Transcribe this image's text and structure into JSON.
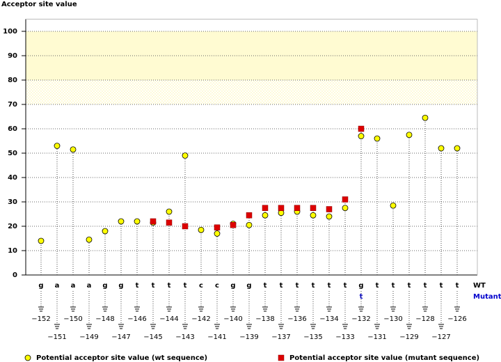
{
  "chart_data": {
    "type": "lollipop",
    "y_axis_label": "Acceptor site value",
    "categories": [
      "−152",
      "−151",
      "−150",
      "−149",
      "−148",
      "−147",
      "−146",
      "−145",
      "−144",
      "−143",
      "−142",
      "−141",
      "−140",
      "−139",
      "−138",
      "−137",
      "−136",
      "−135",
      "−134",
      "−133",
      "−132",
      "−131",
      "−130",
      "−129",
      "−128",
      "−127",
      "−126"
    ],
    "wt_label": "WT",
    "mutant_label": "Mutant",
    "wt_sequence": [
      "g",
      "a",
      "a",
      "a",
      "g",
      "g",
      "t",
      "t",
      "t",
      "t",
      "c",
      "c",
      "g",
      "g",
      "t",
      "t",
      "t",
      "t",
      "t",
      "t",
      "g",
      "t",
      "t",
      "t",
      "t",
      "t",
      "t"
    ],
    "mutant_sequence": [
      null,
      null,
      null,
      null,
      null,
      null,
      null,
      null,
      null,
      null,
      null,
      null,
      null,
      null,
      null,
      null,
      null,
      null,
      null,
      null,
      "t",
      null,
      null,
      null,
      null,
      null,
      null
    ],
    "series": [
      {
        "name": "Potential acceptor site value (wt sequence)",
        "color": "#ffff00",
        "marker": "circle",
        "values": [
          14,
          53,
          51.5,
          14.5,
          18,
          22,
          22,
          21.5,
          26,
          49,
          18.5,
          17,
          21,
          20.5,
          24.5,
          25.5,
          26,
          24.5,
          24,
          27.5,
          57,
          56,
          28.5,
          57.5,
          64.5,
          52,
          52
        ]
      },
      {
        "name": "Potential acceptor site value (mutant sequence)",
        "color": "#dd0000",
        "marker": "square",
        "values": [
          null,
          null,
          null,
          null,
          null,
          null,
          null,
          22,
          21.5,
          20,
          null,
          19.5,
          20.5,
          24.5,
          27.5,
          27.5,
          27.5,
          27.5,
          27,
          31,
          60,
          null,
          null,
          null,
          null,
          null,
          null
        ]
      }
    ],
    "ylim": [
      0,
      105
    ],
    "yticks": [
      0,
      10,
      20,
      30,
      40,
      50,
      60,
      70,
      80,
      90,
      100
    ],
    "band": [
      80,
      100
    ],
    "hatched_band": [
      70,
      80
    ],
    "grid": true
  }
}
